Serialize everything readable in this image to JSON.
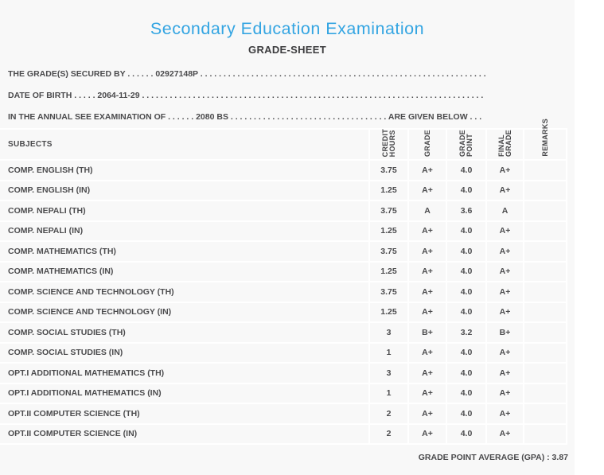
{
  "page": {
    "title": "Secondary Education Examination",
    "subtitle": "GRADE-SHEET"
  },
  "colors": {
    "title_accent": "#34a5e2",
    "body_text": "#4a4a4c",
    "page_background": "#f8f8f8",
    "cell_border": "#ffffff"
  },
  "info": {
    "line1": {
      "label": "THE GRADE(S) SECURED BY",
      "leader": " . . . . . . ",
      "value": "02927148P",
      "trailer": " . . . . . . . . . . . . . . . . . . . . . . . . . . . . . . . . . . . . . . . . . . . . . . . . . . . . . . . . . . . . . ."
    },
    "line2": {
      "label": "DATE OF BIRTH",
      "leader": " . . . . . ",
      "value": "2064-11-29",
      "trailer": " . . . . . . . . . . . . . . . . . . . . . . . . . . . . . . . . . . . . . . . . . . . . . . . . . . . . . . . . . . . . . . . . . . . . . . . . . ."
    },
    "line3": {
      "label": "IN THE ANNUAL SEE EXAMINATION OF",
      "leader": " . . . . . . ",
      "value": "2080 BS",
      "trailer": " . . . . . . . . . . . . . . . . . . . . . . . . . . . . . . . . . . ",
      "suffix": "ARE GIVEN BELOW",
      "suffix_trailer": " . . ."
    }
  },
  "table": {
    "columns": {
      "subjects": "SUBJECTS",
      "credit_hours": "CREDIT\nHOURS",
      "grade": "GRADE",
      "grade_point": "GRADE\nPOINT",
      "final_grade": "FINAL\nGRADE",
      "remarks": "REMARKS"
    },
    "rows": [
      {
        "subject": "COMP. ENGLISH (TH)",
        "credit_hours": "3.75",
        "grade": "A+",
        "grade_point": "4.0",
        "final_grade": "A+",
        "remarks": ""
      },
      {
        "subject": "COMP. ENGLISH (IN)",
        "credit_hours": "1.25",
        "grade": "A+",
        "grade_point": "4.0",
        "final_grade": "A+",
        "remarks": ""
      },
      {
        "subject": "COMP. NEPALI (TH)",
        "credit_hours": "3.75",
        "grade": "A",
        "grade_point": "3.6",
        "final_grade": "A",
        "remarks": ""
      },
      {
        "subject": "COMP. NEPALI (IN)",
        "credit_hours": "1.25",
        "grade": "A+",
        "grade_point": "4.0",
        "final_grade": "A+",
        "remarks": ""
      },
      {
        "subject": "COMP. MATHEMATICS (TH)",
        "credit_hours": "3.75",
        "grade": "A+",
        "grade_point": "4.0",
        "final_grade": "A+",
        "remarks": ""
      },
      {
        "subject": "COMP. MATHEMATICS (IN)",
        "credit_hours": "1.25",
        "grade": "A+",
        "grade_point": "4.0",
        "final_grade": "A+",
        "remarks": ""
      },
      {
        "subject": "COMP. SCIENCE AND TECHNOLOGY (TH)",
        "credit_hours": "3.75",
        "grade": "A+",
        "grade_point": "4.0",
        "final_grade": "A+",
        "remarks": ""
      },
      {
        "subject": "COMP. SCIENCE AND TECHNOLOGY (IN)",
        "credit_hours": "1.25",
        "grade": "A+",
        "grade_point": "4.0",
        "final_grade": "A+",
        "remarks": ""
      },
      {
        "subject": "COMP. SOCIAL STUDIES (TH)",
        "credit_hours": "3",
        "grade": "B+",
        "grade_point": "3.2",
        "final_grade": "B+",
        "remarks": ""
      },
      {
        "subject": "COMP. SOCIAL STUDIES (IN)",
        "credit_hours": "1",
        "grade": "A+",
        "grade_point": "4.0",
        "final_grade": "A+",
        "remarks": ""
      },
      {
        "subject": "OPT.I ADDITIONAL MATHEMATICS (TH)",
        "credit_hours": "3",
        "grade": "A+",
        "grade_point": "4.0",
        "final_grade": "A+",
        "remarks": ""
      },
      {
        "subject": "OPT.I ADDITIONAL MATHEMATICS (IN)",
        "credit_hours": "1",
        "grade": "A+",
        "grade_point": "4.0",
        "final_grade": "A+",
        "remarks": ""
      },
      {
        "subject": "OPT.II COMPUTER SCIENCE (TH)",
        "credit_hours": "2",
        "grade": "A+",
        "grade_point": "4.0",
        "final_grade": "A+",
        "remarks": ""
      },
      {
        "subject": "OPT.II COMPUTER SCIENCE (IN)",
        "credit_hours": "2",
        "grade": "A+",
        "grade_point": "4.0",
        "final_grade": "A+",
        "remarks": ""
      }
    ]
  },
  "footer": {
    "gpa": "GRADE POINT AVERAGE (GPA) : 3.87"
  }
}
